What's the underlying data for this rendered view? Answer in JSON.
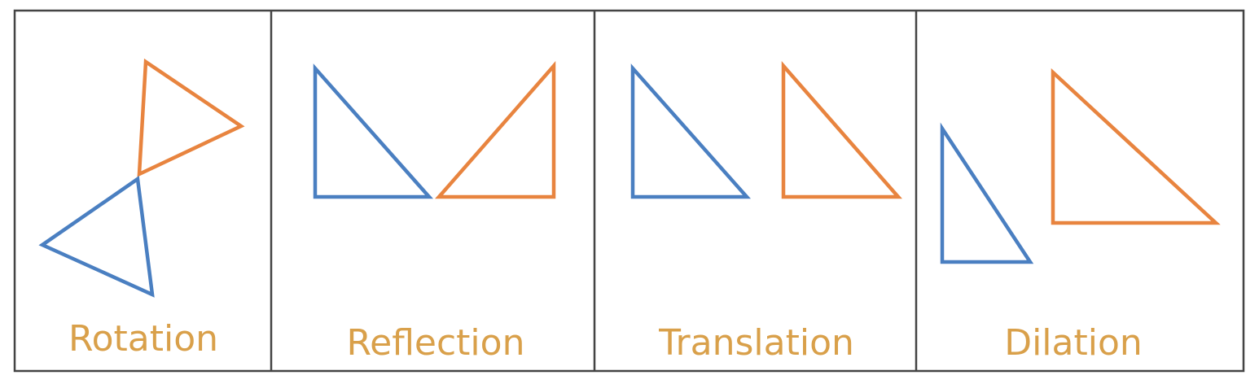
{
  "colors": {
    "original": "#4a7fc1",
    "image": "#e8843f",
    "label": "#d9a04a",
    "border": "#444444"
  },
  "panels": [
    {
      "label": "Rotation"
    },
    {
      "label": "Reflection"
    },
    {
      "label": "Translation"
    },
    {
      "label": "Dilation"
    }
  ]
}
